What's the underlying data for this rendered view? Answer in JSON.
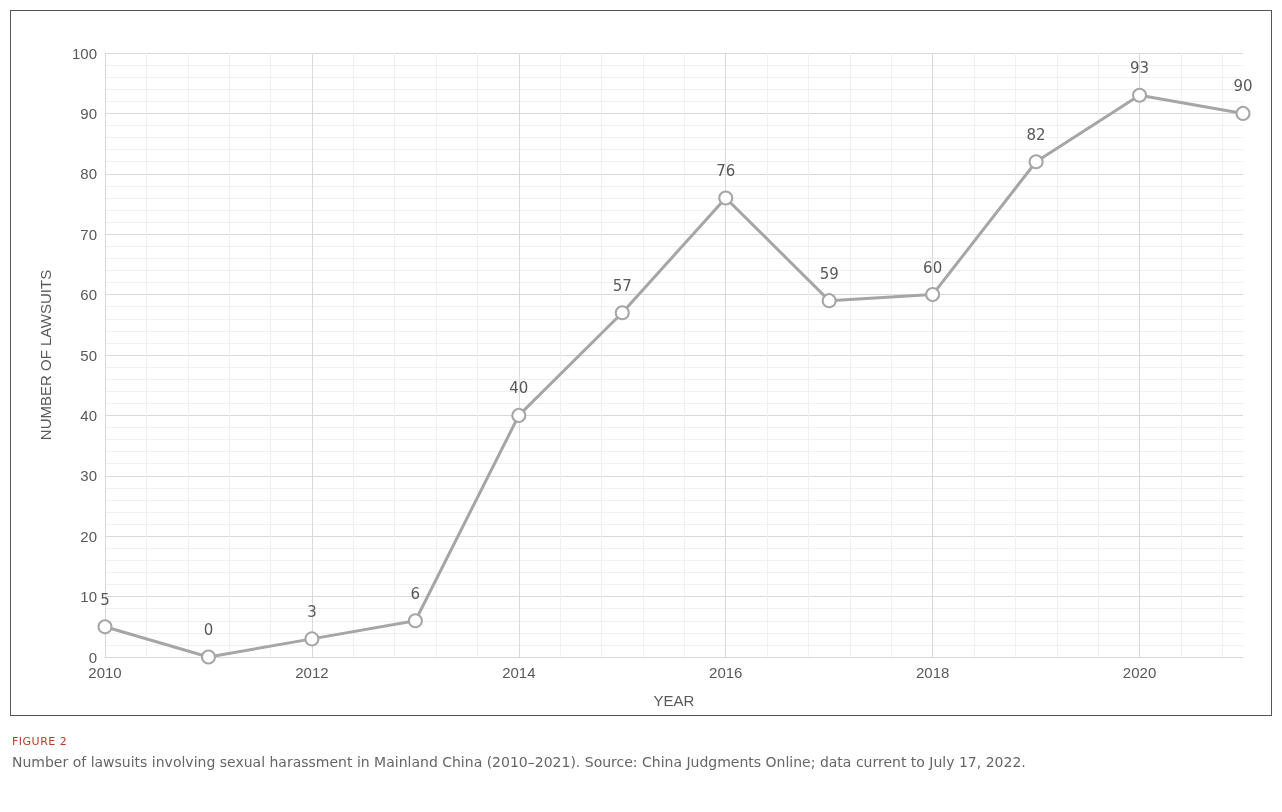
{
  "chart_data": {
    "type": "line",
    "xlabel": "YEAR",
    "ylabel": "NUMBER OF LAWSUITS",
    "x": [
      2010,
      2011,
      2012,
      2013,
      2014,
      2015,
      2016,
      2017,
      2018,
      2019,
      2020,
      2021
    ],
    "series": [
      {
        "color": "#a6a6a6",
        "values": [
          5,
          0,
          3,
          6,
          40,
          57,
          76,
          59,
          60,
          82,
          93,
          90
        ]
      }
    ],
    "xlim": [
      2010,
      2021
    ],
    "xticks": [
      2010,
      2012,
      2014,
      2016,
      2018,
      2020
    ],
    "ylim": [
      0,
      100
    ],
    "yticks": [
      0,
      10,
      20,
      30,
      40,
      50,
      60,
      70,
      80,
      90,
      100
    ],
    "grid": true,
    "marker": "circle",
    "line_style": "solid",
    "data_labels": true,
    "annotations": [
      "FIGURE 2",
      "Number of lawsuits involving sexual harassment in Mainland China (2010–2021). Source: China Judgments Online; data current to July 17, 2022."
    ]
  }
}
